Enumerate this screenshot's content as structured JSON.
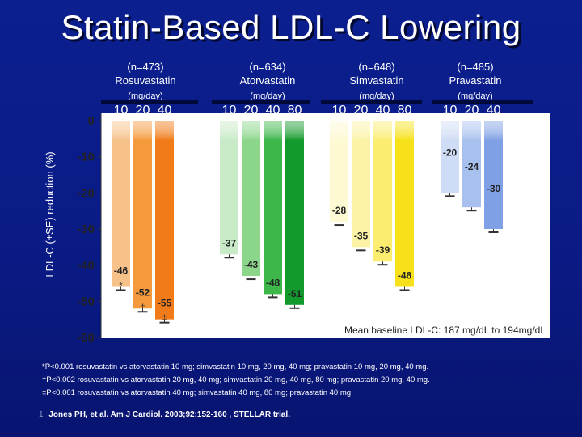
{
  "slide": {
    "title": "Statin-Based LDL-C Lowering",
    "slide_number": "1",
    "footnotes": [
      "*P<0.001 rosuvastatin vs atorvastatin 10 mg; simvastatin 10 mg, 20 mg, 40 mg; pravastatin 10 mg, 20 mg, 40 mg.",
      "†P<0.002 rosuvastatin vs atorvastatin 20 mg, 40 mg; simvastatin 20 mg, 40 mg, 80 mg; pravastatin 20 mg, 40 mg.",
      "‡P<0.001 rosuvastatin vs atorvastatin 40 mg; simvastatin 40 mg, 80 mg; pravastatin 40 mg"
    ],
    "citation": "Jones PH, et al. Am J Cardiol. 2003;92:152-160 , STELLAR trial."
  },
  "chart_data": {
    "type": "bar",
    "title": "Statin-Based LDL-C Lowering",
    "ylabel": "LDL-C (±SE) reduction (%)",
    "xlabel": "",
    "ylim": [
      -60,
      0
    ],
    "yticks": [
      0,
      -10,
      -20,
      -30,
      -40,
      -50,
      -60
    ],
    "annotation": "Mean baseline LDL-C: 187 mg/dL to 194mg/dL",
    "unit_label": "(mg/day)",
    "groups": [
      {
        "name": "Rosuvastatin",
        "n_label": "(n=473)",
        "doses": [
          "10",
          "20",
          "40"
        ],
        "values": [
          -46,
          -52,
          -55
        ],
        "markers": [
          "*",
          "†",
          "‡"
        ],
        "colors": [
          "#f6c28a",
          "#f49a3c",
          "#f07b18"
        ]
      },
      {
        "name": "Atorvastatin",
        "n_label": "(n=634)",
        "doses": [
          "10",
          "20",
          "40",
          "80"
        ],
        "values": [
          -37,
          -43,
          -48,
          -51
        ],
        "markers": [
          "",
          "",
          "",
          ""
        ],
        "colors": [
          "#c8eac6",
          "#8cd68c",
          "#3db64a",
          "#139a2c"
        ]
      },
      {
        "name": "Simvastatin",
        "n_label": "(n=648)",
        "doses": [
          "10",
          "20",
          "40",
          "80"
        ],
        "values": [
          -28,
          -35,
          -39,
          -46
        ],
        "markers": [
          "",
          "",
          "",
          ""
        ],
        "colors": [
          "#fdf9d2",
          "#fcf3a6",
          "#fbed70",
          "#f6e11a"
        ]
      },
      {
        "name": "Pravastatin",
        "n_label": "(n=485)",
        "doses": [
          "10",
          "20",
          "40"
        ],
        "values": [
          -20,
          -24,
          -30
        ],
        "markers": [
          "",
          "",
          ""
        ],
        "colors": [
          "#cfdcf5",
          "#a8c0ee",
          "#7fa0e4"
        ]
      }
    ]
  }
}
